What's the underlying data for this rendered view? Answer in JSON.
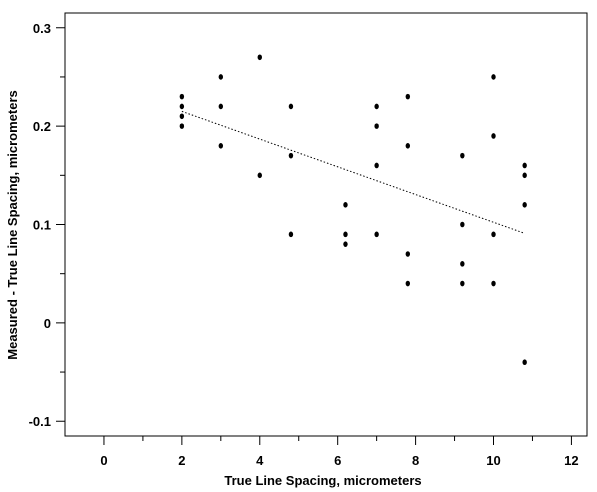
{
  "chart_data": {
    "type": "scatter",
    "title": "",
    "xlabel": "True Line Spacing, micrometers",
    "ylabel": "Measured - True Line Spacing, micrometers",
    "xlim": [
      -1,
      12.4
    ],
    "ylim": [
      -0.115,
      0.315
    ],
    "x_major_ticks": [
      0,
      2,
      4,
      6,
      8,
      10,
      12
    ],
    "x_minor_ticks": [
      1,
      3,
      5,
      7,
      9,
      11
    ],
    "y_major_ticks": [
      -0.1,
      0,
      0.1,
      0.2,
      0.3
    ],
    "y_minor_ticks": [
      -0.05,
      0.05,
      0.15,
      0.25
    ],
    "x_tick_labels": [
      "0",
      "2",
      "4",
      "6",
      "8",
      "10",
      "12"
    ],
    "y_tick_labels": [
      "-0.1",
      "0",
      "0.1",
      "0.2",
      "0.3"
    ],
    "grid": false,
    "legend": "none",
    "points": [
      {
        "x": 2,
        "y": 0.23
      },
      {
        "x": 2,
        "y": 0.22
      },
      {
        "x": 2,
        "y": 0.21
      },
      {
        "x": 2,
        "y": 0.2
      },
      {
        "x": 3,
        "y": 0.25
      },
      {
        "x": 3,
        "y": 0.22
      },
      {
        "x": 3,
        "y": 0.18
      },
      {
        "x": 4,
        "y": 0.27
      },
      {
        "x": 4,
        "y": 0.15
      },
      {
        "x": 4.8,
        "y": 0.22
      },
      {
        "x": 4.8,
        "y": 0.17
      },
      {
        "x": 4.8,
        "y": 0.09
      },
      {
        "x": 6.2,
        "y": 0.12
      },
      {
        "x": 6.2,
        "y": 0.09
      },
      {
        "x": 6.2,
        "y": 0.08
      },
      {
        "x": 7,
        "y": 0.22
      },
      {
        "x": 7,
        "y": 0.2
      },
      {
        "x": 7,
        "y": 0.16
      },
      {
        "x": 7,
        "y": 0.09
      },
      {
        "x": 7.8,
        "y": 0.23
      },
      {
        "x": 7.8,
        "y": 0.18
      },
      {
        "x": 7.8,
        "y": 0.07
      },
      {
        "x": 7.8,
        "y": 0.04
      },
      {
        "x": 9.2,
        "y": 0.17
      },
      {
        "x": 9.2,
        "y": 0.1
      },
      {
        "x": 9.2,
        "y": 0.06
      },
      {
        "x": 9.2,
        "y": 0.04
      },
      {
        "x": 10,
        "y": 0.25
      },
      {
        "x": 10,
        "y": 0.19
      },
      {
        "x": 10,
        "y": 0.09
      },
      {
        "x": 10,
        "y": 0.04
      },
      {
        "x": 10.8,
        "y": 0.16
      },
      {
        "x": 10.8,
        "y": 0.15
      },
      {
        "x": 10.8,
        "y": 0.12
      },
      {
        "x": 10.8,
        "y": -0.04
      }
    ],
    "fit_line": {
      "x": [
        2,
        10.8
      ],
      "y": [
        0.215,
        0.091
      ],
      "style": "dotted"
    },
    "colors": {
      "points": "#000000",
      "fit_line": "#000000",
      "axes": "#000000"
    }
  }
}
